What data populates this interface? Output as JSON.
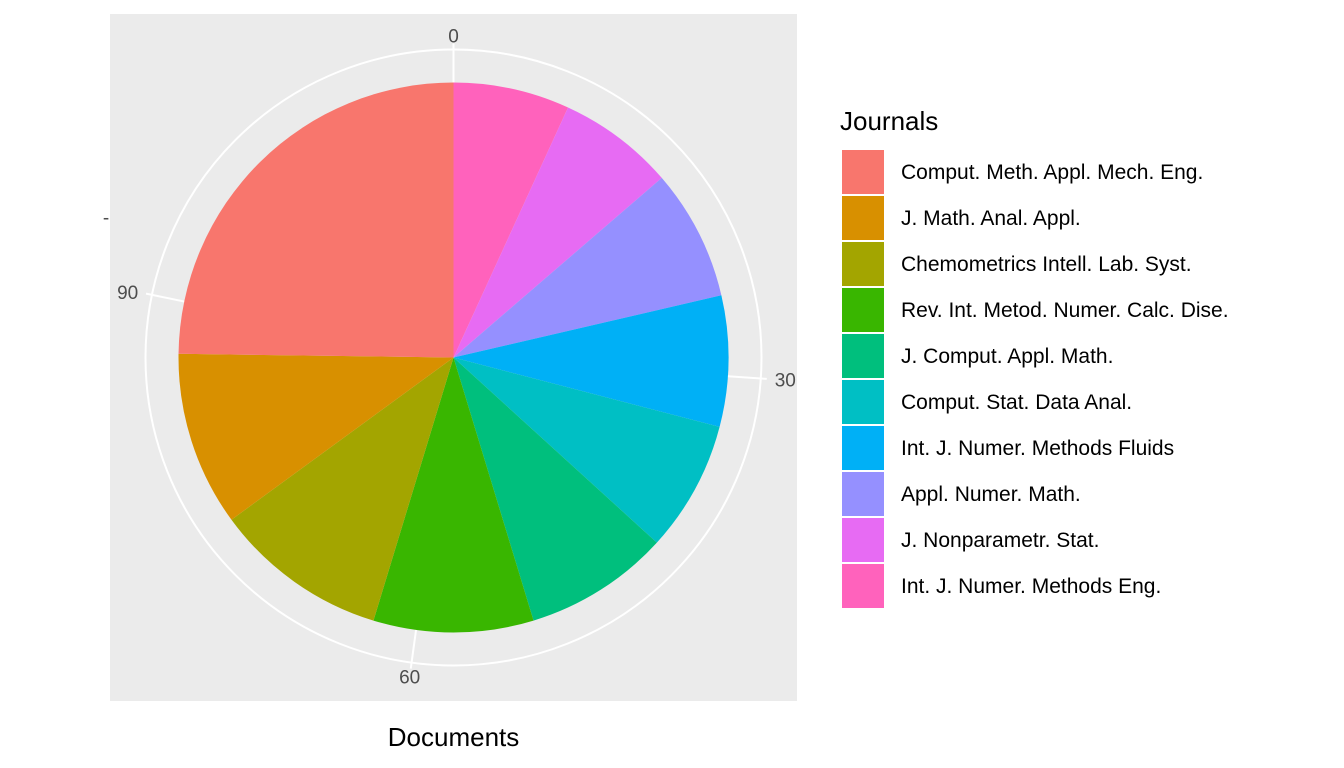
{
  "chart_data": {
    "type": "pie",
    "xlabel": "Documents",
    "ylabel": "",
    "y_tick_label": "-",
    "legend_title": "Journals",
    "legend_position": "right",
    "angular_axis": {
      "min": 0,
      "max": 115,
      "ticks": [
        0,
        30,
        60,
        90
      ]
    },
    "grid": true,
    "panel_background": "#ebebeb",
    "categories": [
      "Comput. Meth. Appl. Mech. Eng.",
      "J. Math. Anal. Appl.",
      "Chemometrics Intell. Lab. Syst.",
      "Rev. Int. Metod. Numer. Calc. Dise.",
      "J. Comput. Appl. Math.",
      "Comput. Stat. Data Anal.",
      "Int. J. Numer. Methods Fluids",
      "Appl. Numer. Math.",
      "J. Nonparametr. Stat.",
      "Int. J. Numer. Methods Eng."
    ],
    "values": [
      29,
      12,
      12,
      11,
      10,
      9,
      9,
      9,
      8,
      8
    ],
    "colors": [
      "#F8766D",
      "#D89000",
      "#A3A500",
      "#39B600",
      "#00BF7D",
      "#00BFC4",
      "#00B0F6",
      "#9590FF",
      "#E76BF3",
      "#FF62BC"
    ]
  }
}
